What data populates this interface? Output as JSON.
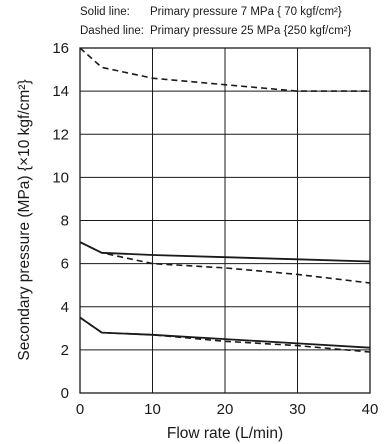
{
  "chart_data": {
    "type": "line",
    "notes": [
      {
        "label": "Solid line:",
        "text": "Primary pressure  7 MPa { 70 kgf/cm²}",
        "style": "solid"
      },
      {
        "label": "Dashed line:",
        "text": "Primary pressure 25 MPa {250 kgf/cm²}",
        "style": "dashed"
      }
    ],
    "xlabel": "Flow rate (L/min)",
    "ylabel": "Secondary pressure (MPa) {×10 kgf/cm²}",
    "xlim": [
      0,
      40
    ],
    "ylim": [
      0,
      16
    ],
    "x_ticks": [
      "0",
      "10",
      "20",
      "30",
      "40"
    ],
    "y_ticks": [
      "0",
      "2",
      "4",
      "6",
      "8",
      "10",
      "12",
      "14",
      "16"
    ],
    "grid": true,
    "series": [
      {
        "style": "dashed",
        "x": [
          0,
          3,
          10,
          20,
          30,
          40
        ],
        "y": [
          16.0,
          15.1,
          14.6,
          14.3,
          14.0,
          14.0
        ]
      },
      {
        "style": "solid",
        "x": [
          0,
          3,
          10,
          20,
          30,
          40
        ],
        "y": [
          7.0,
          6.5,
          6.4,
          6.3,
          6.2,
          6.1
        ]
      },
      {
        "style": "dashed",
        "x": [
          0,
          3,
          10,
          20,
          30,
          40
        ],
        "y": [
          7.0,
          6.5,
          6.0,
          5.8,
          5.5,
          5.1
        ]
      },
      {
        "style": "solid",
        "x": [
          0,
          3,
          10,
          20,
          30,
          40
        ],
        "y": [
          3.5,
          2.8,
          2.7,
          2.5,
          2.3,
          2.1
        ]
      },
      {
        "style": "dashed",
        "x": [
          0,
          3,
          10,
          20,
          30,
          40
        ],
        "y": [
          3.5,
          2.8,
          2.7,
          2.4,
          2.2,
          1.9
        ]
      }
    ]
  }
}
